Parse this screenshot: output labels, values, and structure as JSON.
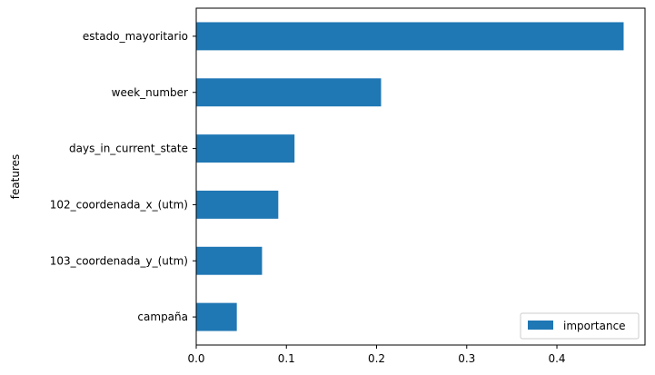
{
  "chart_data": {
    "type": "bar",
    "orientation": "horizontal",
    "categories": [
      "estado_mayoritario",
      "week_number",
      "days_in_current_state",
      "102_coordenada_x_(utm)",
      "103_coordenada_y_(utm)",
      "campaña"
    ],
    "series": [
      {
        "name": "importance",
        "values": [
          0.474,
          0.205,
          0.109,
          0.091,
          0.073,
          0.045
        ],
        "color": "#1f77b4"
      }
    ],
    "xticks": [
      "0.0",
      "0.1",
      "0.2",
      "0.3",
      "0.4"
    ],
    "xtick_values": [
      0.0,
      0.1,
      0.2,
      0.3,
      0.4
    ],
    "xlim": [
      0.0,
      0.4977
    ],
    "ylabel": "features",
    "xlabel": "",
    "title": "",
    "legend_position": "lower-right",
    "grid": false
  }
}
